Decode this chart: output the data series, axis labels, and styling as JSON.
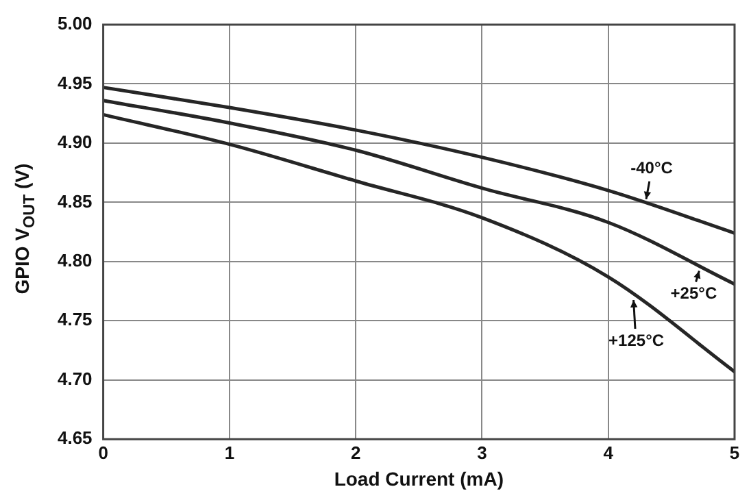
{
  "chart_data": {
    "type": "line",
    "xlabel": "Load Current (mA)",
    "ylabel": "GPIO V$_{OUT}$ (V)",
    "x": [
      0,
      1,
      2,
      3,
      4,
      5
    ],
    "series": [
      {
        "name": "-40°C",
        "color": "#262626",
        "values": [
          4.947,
          4.93,
          4.911,
          4.888,
          4.86,
          4.824
        ]
      },
      {
        "name": "+25°C",
        "color": "#262626",
        "values": [
          4.936,
          4.917,
          4.894,
          4.862,
          4.833,
          4.781
        ]
      },
      {
        "name": "+125°C",
        "color": "#262626",
        "values": [
          4.924,
          4.899,
          4.868,
          4.837,
          4.787,
          4.707
        ]
      }
    ],
    "xlim": [
      0,
      5
    ],
    "xticks": [
      0,
      1,
      2,
      3,
      4,
      5
    ],
    "ylim": [
      4.65,
      5.0
    ],
    "yticks": [
      {
        "value": 4.65,
        "label": "4.65"
      },
      {
        "value": 4.7,
        "label": "4.70"
      },
      {
        "value": 4.75,
        "label": "4.75"
      },
      {
        "value": 4.8,
        "label": "4.80"
      },
      {
        "value": 4.85,
        "label": "4.85"
      },
      {
        "value": 4.9,
        "label": "4.90"
      },
      {
        "value": 4.95,
        "label": "4.95"
      },
      {
        "value": 5.0,
        "label": "5.00"
      }
    ],
    "grid": true,
    "legend": false,
    "marker": "none",
    "line_style": "solid"
  }
}
